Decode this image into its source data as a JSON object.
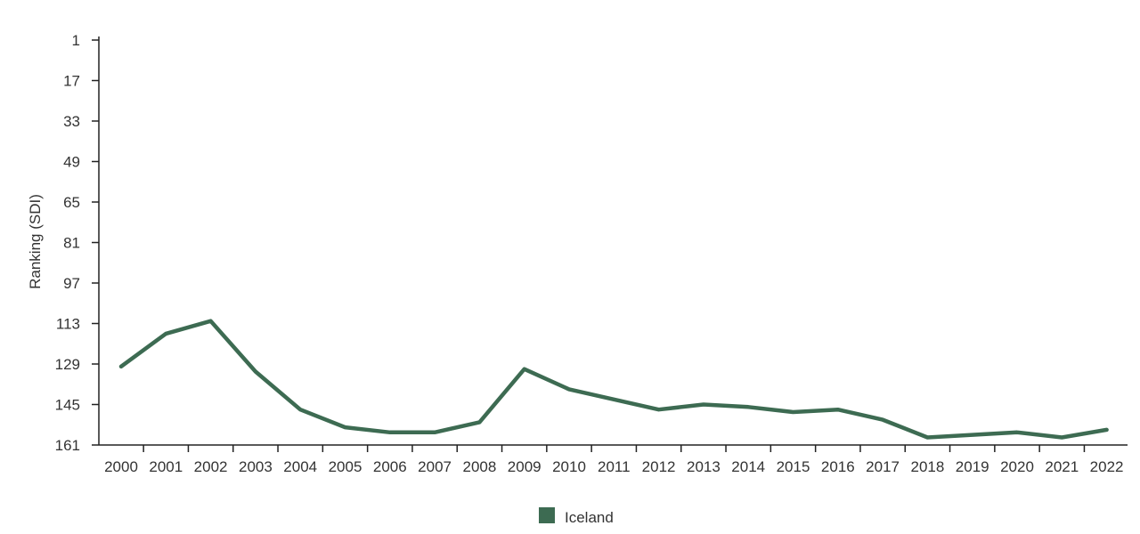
{
  "chart_data": {
    "type": "line",
    "title": "",
    "xlabel": "",
    "ylabel": "Ranking (SDI)",
    "y_reversed": true,
    "ylim": [
      161,
      1
    ],
    "yticks": [
      1,
      17,
      33,
      49,
      65,
      81,
      97,
      113,
      129,
      145,
      161
    ],
    "categories": [
      "2000",
      "2001",
      "2002",
      "2003",
      "2004",
      "2005",
      "2006",
      "2007",
      "2008",
      "2009",
      "2010",
      "2011",
      "2012",
      "2013",
      "2014",
      "2015",
      "2016",
      "2017",
      "2018",
      "2019",
      "2020",
      "2021",
      "2022"
    ],
    "series": [
      {
        "name": "Iceland",
        "color": "#3d6b52",
        "values": [
          130,
          117,
          112,
          132,
          147,
          154,
          156,
          156,
          152,
          131,
          139,
          143,
          147,
          145,
          146,
          148,
          147,
          151,
          158,
          157,
          156,
          158,
          155
        ]
      }
    ],
    "legend": "bottom-center",
    "grid": false
  }
}
